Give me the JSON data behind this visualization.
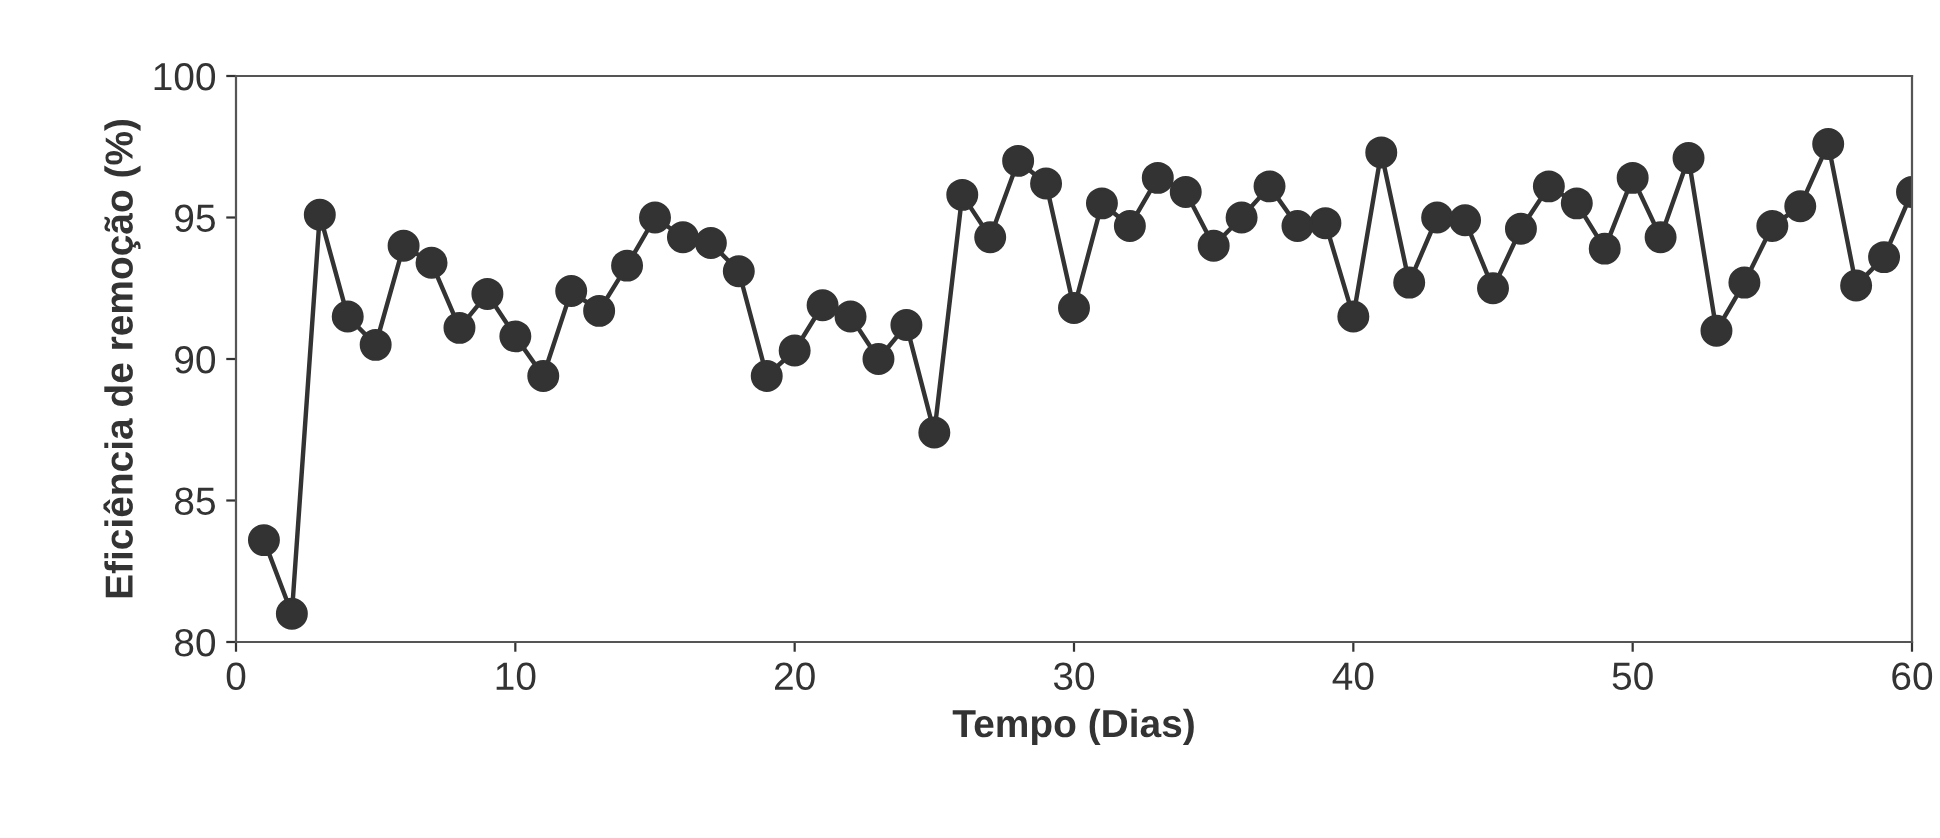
{
  "chart_data": {
    "type": "line",
    "xlabel": "Tempo (Dias)",
    "ylabel": "Eficiência de remoção (%)",
    "x": [
      1,
      2,
      3,
      4,
      5,
      6,
      7,
      8,
      9,
      10,
      11,
      12,
      13,
      14,
      15,
      16,
      17,
      18,
      19,
      20,
      21,
      22,
      23,
      24,
      25,
      26,
      27,
      28,
      29,
      30,
      31,
      32,
      33,
      34,
      35,
      36,
      37,
      38,
      39,
      40,
      41,
      42,
      43,
      44,
      45,
      46,
      47,
      48,
      49,
      50,
      51,
      52,
      53,
      54,
      55,
      56,
      57,
      58,
      59,
      60
    ],
    "series": [
      {
        "color": "#333333",
        "values": [
          83.6,
          81.0,
          95.1,
          91.5,
          90.5,
          94.0,
          93.4,
          91.1,
          92.3,
          90.8,
          89.4,
          92.4,
          91.7,
          93.3,
          95.0,
          94.3,
          94.1,
          93.1,
          89.4,
          90.3,
          91.9,
          91.5,
          90.0,
          91.2,
          87.4,
          95.8,
          94.3,
          97.0,
          96.2,
          91.8,
          95.5,
          94.7,
          96.4,
          95.9,
          94.0,
          95.0,
          96.1,
          94.7,
          94.8,
          91.5,
          97.3,
          92.7,
          95.0,
          94.9,
          92.5,
          94.6,
          96.1,
          95.5,
          93.9,
          96.4,
          94.3,
          97.1,
          91.0,
          92.7,
          94.7,
          95.4,
          97.6,
          92.6,
          93.6,
          95.9
        ]
      }
    ],
    "xlim": [
      0,
      60
    ],
    "xticks": [
      0,
      10,
      20,
      30,
      40,
      50,
      60
    ],
    "ylim": [
      80,
      100
    ],
    "yticks": [
      80,
      85,
      90,
      95,
      100
    ],
    "marker": "circle",
    "line_style": "solid",
    "grid": false,
    "legend": false
  }
}
